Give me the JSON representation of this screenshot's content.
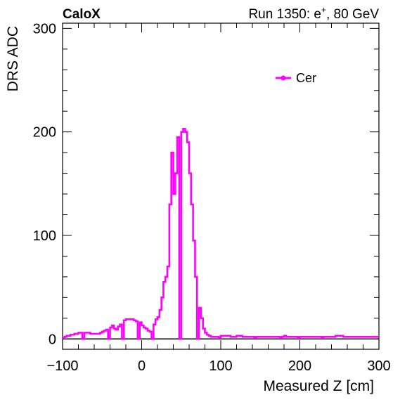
{
  "header": {
    "experiment": "CaloX",
    "run_label": "Run 1350: e",
    "run_superscript": "+",
    "run_suffix": ", 80 GeV"
  },
  "chart_data": {
    "type": "line",
    "drawstyle": "step",
    "xlabel": "Measured Z [cm]",
    "ylabel": "DRS ADC",
    "xlim": [
      -100,
      300
    ],
    "ylim": [
      -10,
      305
    ],
    "xticks": [
      -100,
      0,
      100,
      200,
      300
    ],
    "xtick_labels": [
      "−100",
      "0",
      "100",
      "200",
      "300"
    ],
    "yticks": [
      0,
      100,
      200,
      300
    ],
    "ytick_labels": [
      "0",
      "100",
      "200",
      "300"
    ],
    "grid": false,
    "legend": {
      "placement": "top-right",
      "entries": [
        "Cer"
      ]
    },
    "series": [
      {
        "name": "Cer",
        "color": "#ff00ff",
        "bin_width": 2.5,
        "x_start": -100,
        "values": [
          1,
          2,
          3,
          3,
          4,
          4,
          5,
          5,
          6,
          6,
          0,
          6,
          6,
          6,
          5,
          5,
          5,
          5,
          5,
          6,
          7,
          8,
          9,
          0,
          11,
          13,
          10,
          9,
          12,
          14,
          0,
          18,
          19,
          19,
          19,
          19,
          18,
          17,
          0,
          16,
          13,
          11,
          10,
          8,
          7,
          0,
          14,
          19,
          21,
          28,
          40,
          55,
          60,
          70,
          130,
          180,
          140,
          160,
          195,
          0,
          200,
          203,
          200,
          190,
          160,
          130,
          95,
          60,
          0,
          30,
          20,
          10,
          6,
          4,
          3,
          2,
          2,
          2,
          2,
          1,
          3,
          3,
          3,
          3,
          3,
          2,
          2,
          2,
          3,
          3,
          3,
          2,
          2,
          2,
          2,
          2,
          2,
          1,
          2,
          2,
          2,
          2,
          2,
          2,
          2,
          2,
          2,
          2,
          2,
          2,
          1,
          2,
          3,
          2,
          2,
          2,
          2,
          2,
          2,
          1,
          2,
          2,
          2,
          2,
          2,
          2,
          2,
          2,
          2,
          2,
          2,
          1,
          2,
          2,
          2,
          2,
          2,
          2,
          3,
          3,
          3,
          3,
          2,
          2,
          2,
          2,
          2,
          2,
          2,
          2,
          2,
          2,
          2,
          2,
          2,
          2,
          2,
          2,
          2,
          2
        ]
      }
    ]
  }
}
